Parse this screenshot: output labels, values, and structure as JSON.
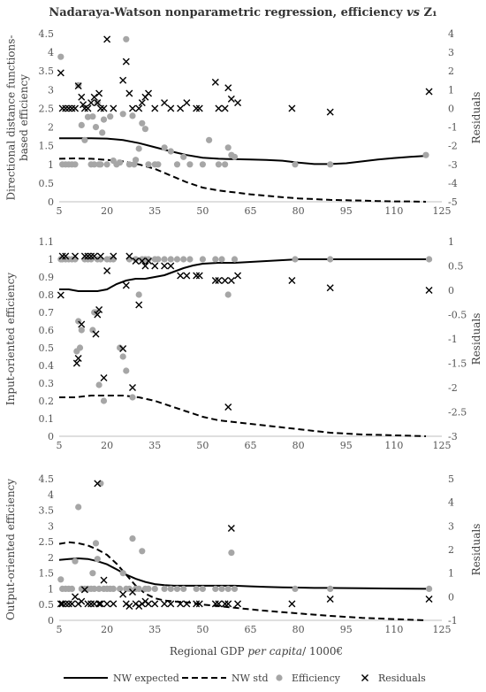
{
  "figure": {
    "title": "Nadaraya-Watson nonparametric regression, efficiency vs Z₁",
    "xlabel": "Regional GDP per capita/ 1000€",
    "legend": [
      "NW expected",
      "NW std",
      "Efficiency",
      "Residuals"
    ]
  },
  "chart_data": [
    {
      "type": "scatter",
      "title": "",
      "ylabel": "Directional distance functions-based efficiency",
      "y2label": "Residuals",
      "xlim": [
        5,
        125
      ],
      "xticks": [
        5,
        20,
        35,
        50,
        65,
        80,
        95,
        110,
        125
      ],
      "ylim": [
        0,
        4.5
      ],
      "yticks": [
        0,
        0.5,
        1,
        1.5,
        2,
        2.5,
        3,
        3.5,
        4,
        4.5
      ],
      "y2lim": [
        -5,
        4
      ],
      "y2ticks": [
        -5,
        -4,
        -3,
        -2,
        -1,
        0,
        1,
        2,
        3,
        4
      ],
      "grid": false,
      "legend_position": "bottom",
      "series": [
        {
          "name": "NW expected",
          "type": "line",
          "axis": "left",
          "x": [
            5,
            10,
            15,
            20,
            25,
            30,
            35,
            40,
            45,
            50,
            55,
            60,
            65,
            70,
            75,
            80,
            85,
            90,
            95,
            100,
            105,
            110,
            115,
            120
          ],
          "y": [
            1.7,
            1.7,
            1.7,
            1.69,
            1.65,
            1.57,
            1.46,
            1.35,
            1.25,
            1.18,
            1.15,
            1.14,
            1.13,
            1.12,
            1.1,
            1.05,
            1.01,
            1.01,
            1.03,
            1.08,
            1.13,
            1.17,
            1.2,
            1.23
          ]
        },
        {
          "name": "NW std",
          "type": "line",
          "axis": "left",
          "x": [
            5,
            10,
            15,
            20,
            25,
            30,
            35,
            40,
            45,
            50,
            55,
            60,
            65,
            70,
            75,
            80,
            85,
            90,
            95,
            100,
            105,
            110,
            115,
            120
          ],
          "y": [
            1.15,
            1.16,
            1.15,
            1.12,
            1.08,
            1.0,
            0.88,
            0.7,
            0.52,
            0.38,
            0.3,
            0.25,
            0.2,
            0.16,
            0.12,
            0.09,
            0.07,
            0.05,
            0.04,
            0.03,
            0.02,
            0.01,
            0.01,
            0.0
          ]
        },
        {
          "name": "Efficiency",
          "type": "scatter",
          "axis": "left",
          "x": [
            5.5,
            6,
            7,
            8,
            9,
            10,
            11,
            12,
            13,
            14,
            15,
            15.5,
            16,
            16.5,
            17,
            17.5,
            18,
            18.5,
            19,
            20,
            21,
            22,
            23,
            24,
            25,
            26,
            27,
            28,
            28.5,
            29,
            30,
            31,
            32,
            33,
            35,
            36,
            38,
            40,
            42,
            44,
            46,
            50,
            52,
            55,
            57,
            58,
            59,
            60,
            79,
            90,
            120
          ],
          "y": [
            3.88,
            1.0,
            1.0,
            1.0,
            1.0,
            1.0,
            3.12,
            2.05,
            1.65,
            2.27,
            1.0,
            2.28,
            1.0,
            2.0,
            2.65,
            1.0,
            1.0,
            1.85,
            2.2,
            1.0,
            2.28,
            1.1,
            1.0,
            1.05,
            2.35,
            4.35,
            1.0,
            2.3,
            1.0,
            1.12,
            1.42,
            2.1,
            1.95,
            1.0,
            1.0,
            1.0,
            1.45,
            1.35,
            1.0,
            1.2,
            1.0,
            1.0,
            1.65,
            1.0,
            1.0,
            1.45,
            1.25,
            1.2,
            1.0,
            1.0,
            1.25
          ]
        },
        {
          "name": "Residuals",
          "type": "scatter",
          "axis": "right",
          "x": [
            5.5,
            6,
            7,
            8,
            9,
            10,
            11,
            12,
            12.5,
            13,
            14,
            15,
            16,
            17,
            17.5,
            18,
            19,
            20,
            22,
            25,
            26,
            27,
            28,
            30,
            31,
            32,
            33,
            35,
            38,
            40,
            43,
            45,
            48,
            49,
            54,
            55,
            57,
            58,
            59,
            61,
            78,
            90,
            121
          ],
          "y": [
            1.9,
            0.0,
            0.0,
            0.0,
            0.0,
            0.0,
            1.2,
            0.6,
            0.2,
            0.0,
            0.0,
            0.3,
            0.6,
            0.3,
            0.8,
            0.0,
            0.0,
            3.7,
            0.0,
            1.5,
            2.5,
            0.8,
            0.0,
            0.0,
            0.3,
            0.6,
            0.8,
            0.0,
            0.3,
            0.0,
            0.0,
            0.3,
            0.0,
            0.0,
            1.4,
            0.0,
            0.0,
            1.1,
            0.5,
            0.3,
            0.0,
            -0.2,
            0.9
          ]
        }
      ]
    },
    {
      "type": "scatter",
      "title": "",
      "ylabel": "Input-oriented efficiency",
      "y2label": "Residuals",
      "xlim": [
        5,
        125
      ],
      "xticks": [
        5,
        20,
        35,
        50,
        65,
        80,
        95,
        110,
        125
      ],
      "ylim": [
        0,
        1.1
      ],
      "yticks": [
        0,
        0.1,
        0.2,
        0.3,
        0.4,
        0.5,
        0.6,
        0.7,
        0.8,
        0.9,
        1,
        1.1
      ],
      "y2lim": [
        -3,
        1
      ],
      "y2ticks": [
        -3,
        -2.5,
        -2,
        -1.5,
        -1,
        -0.5,
        0,
        0.5,
        1
      ],
      "grid": false,
      "legend_position": "bottom",
      "series": [
        {
          "name": "NW expected",
          "type": "line",
          "axis": "left",
          "x": [
            5,
            8,
            11,
            14,
            17,
            20,
            23,
            26,
            29,
            32,
            35,
            38,
            41,
            44,
            47,
            50,
            55,
            60,
            65,
            70,
            75,
            80,
            85,
            90,
            100,
            110,
            120
          ],
          "y": [
            0.83,
            0.83,
            0.82,
            0.82,
            0.82,
            0.83,
            0.86,
            0.88,
            0.89,
            0.89,
            0.9,
            0.91,
            0.93,
            0.95,
            0.965,
            0.975,
            0.98,
            0.98,
            0.985,
            0.99,
            0.995,
            1.0,
            1.0,
            1.0,
            1.0,
            1.0,
            1.0
          ]
        },
        {
          "name": "NW std",
          "type": "line",
          "axis": "left",
          "x": [
            5,
            10,
            15,
            20,
            25,
            30,
            35,
            40,
            45,
            50,
            55,
            60,
            65,
            70,
            75,
            80,
            85,
            90,
            95,
            100,
            105,
            110,
            115,
            120
          ],
          "y": [
            0.22,
            0.22,
            0.23,
            0.23,
            0.23,
            0.22,
            0.2,
            0.17,
            0.14,
            0.11,
            0.09,
            0.08,
            0.07,
            0.06,
            0.05,
            0.04,
            0.03,
            0.02,
            0.015,
            0.01,
            0.008,
            0.005,
            0.003,
            0.0
          ]
        },
        {
          "name": "Efficiency",
          "type": "scatter",
          "axis": "left",
          "x": [
            5.5,
            6,
            7,
            8,
            9,
            10,
            10.5,
            11,
            11.5,
            12,
            13,
            14,
            15,
            15.5,
            16,
            16.5,
            17,
            17.5,
            18,
            19,
            20,
            21,
            22,
            24,
            25,
            26,
            27,
            28,
            29,
            30,
            31,
            32,
            33,
            35,
            36,
            38,
            40,
            42,
            44,
            46,
            50,
            54,
            56,
            58,
            60,
            79,
            90,
            121
          ],
          "y": [
            1.0,
            1.0,
            1.0,
            1.0,
            1.0,
            1.0,
            0.48,
            0.65,
            0.5,
            0.6,
            1.0,
            1.0,
            1.0,
            0.6,
            0.7,
            0.7,
            1.0,
            0.29,
            1.0,
            0.2,
            1.0,
            1.0,
            1.0,
            0.5,
            0.45,
            0.37,
            1.0,
            0.22,
            1.0,
            0.8,
            1.0,
            1.0,
            1.0,
            1.0,
            1.0,
            1.0,
            1.0,
            1.0,
            1.0,
            1.0,
            1.0,
            1.0,
            1.0,
            0.8,
            1.0,
            1.0,
            1.0,
            1.0
          ]
        },
        {
          "name": "Residuals",
          "type": "scatter",
          "axis": "right",
          "x": [
            5.5,
            6,
            7,
            10,
            10.5,
            11,
            12,
            13,
            14,
            15,
            16,
            16.5,
            17,
            17.5,
            18,
            19,
            20,
            22,
            25,
            26,
            27,
            28,
            29,
            30,
            31,
            32,
            33,
            35,
            38,
            40,
            43,
            45,
            48,
            49,
            54,
            55,
            57,
            58,
            59,
            61,
            78,
            90,
            121
          ],
          "y": [
            -0.1,
            0.7,
            0.7,
            0.7,
            -1.5,
            -1.4,
            -0.7,
            0.7,
            0.7,
            0.7,
            0.7,
            -0.9,
            -0.5,
            -0.4,
            0.7,
            -1.8,
            0.4,
            0.7,
            -1.2,
            0.1,
            0.7,
            -2.0,
            0.6,
            -0.3,
            0.6,
            0.5,
            0.6,
            0.5,
            0.5,
            0.5,
            0.3,
            0.3,
            0.3,
            0.3,
            0.2,
            0.2,
            0.2,
            -2.4,
            0.2,
            0.3,
            0.2,
            0.05,
            0.0
          ]
        }
      ]
    },
    {
      "type": "scatter",
      "title": "",
      "ylabel": "Output-oriented efficiency",
      "y2label": "Residuals",
      "xlim": [
        5,
        125
      ],
      "xticks": [
        5,
        20,
        35,
        50,
        65,
        80,
        95,
        110,
        125
      ],
      "ylim": [
        0,
        4.5
      ],
      "yticks": [
        0,
        0.5,
        1,
        1.5,
        2,
        2.5,
        3,
        3.5,
        4,
        4.5
      ],
      "y2lim": [
        -1,
        5
      ],
      "y2ticks": [
        -1,
        0,
        1,
        2,
        3,
        4,
        5
      ],
      "grid": false,
      "legend_position": "bottom",
      "series": [
        {
          "name": "NW expected",
          "type": "line",
          "axis": "left",
          "x": [
            5,
            8,
            11,
            14,
            17,
            20,
            23,
            26,
            29,
            32,
            35,
            38,
            41,
            44,
            47,
            50,
            55,
            60,
            65,
            70,
            75,
            80,
            85,
            90,
            100,
            110,
            120
          ],
          "y": [
            1.92,
            1.95,
            1.97,
            1.95,
            1.88,
            1.78,
            1.62,
            1.45,
            1.32,
            1.22,
            1.15,
            1.12,
            1.1,
            1.1,
            1.1,
            1.1,
            1.1,
            1.1,
            1.08,
            1.06,
            1.05,
            1.04,
            1.03,
            1.03,
            1.02,
            1.01,
            1.0
          ]
        },
        {
          "name": "NW std",
          "type": "line",
          "axis": "left",
          "x": [
            5,
            8,
            11,
            14,
            17,
            20,
            23,
            26,
            29,
            32,
            35,
            38,
            41,
            44,
            47,
            50,
            55,
            60,
            65,
            70,
            75,
            80,
            85,
            90,
            100,
            110,
            120
          ],
          "y": [
            2.43,
            2.48,
            2.45,
            2.38,
            2.25,
            2.08,
            1.8,
            1.45,
            1.1,
            0.85,
            0.7,
            0.63,
            0.6,
            0.58,
            0.55,
            0.5,
            0.45,
            0.4,
            0.35,
            0.3,
            0.26,
            0.22,
            0.18,
            0.14,
            0.08,
            0.04,
            0.0
          ]
        },
        {
          "name": "Efficiency",
          "type": "scatter",
          "axis": "left",
          "x": [
            5.5,
            6,
            7,
            8,
            9,
            10,
            11,
            12,
            13,
            14,
            15,
            15.5,
            16,
            16.5,
            17,
            17.5,
            18,
            19,
            20,
            21,
            22,
            24,
            25,
            26,
            27,
            28,
            29,
            30,
            31,
            32,
            33,
            35,
            38,
            40,
            42,
            44,
            48,
            50,
            54,
            56,
            58,
            59,
            60,
            79,
            90,
            121
          ],
          "y": [
            1.3,
            1.0,
            1.0,
            1.0,
            1.0,
            1.88,
            3.6,
            1.0,
            1.0,
            1.0,
            1.0,
            1.5,
            1.0,
            2.45,
            1.95,
            1.0,
            4.35,
            1.0,
            1.0,
            1.0,
            1.0,
            1.0,
            1.5,
            1.0,
            1.0,
            2.6,
            1.0,
            1.0,
            2.2,
            1.0,
            1.0,
            1.0,
            1.0,
            1.0,
            1.0,
            1.0,
            1.0,
            1.0,
            1.0,
            1.0,
            1.0,
            2.15,
            1.0,
            1.0,
            1.0,
            1.0
          ]
        },
        {
          "name": "Residuals",
          "type": "scatter",
          "axis": "right",
          "x": [
            5.5,
            6,
            7,
            8,
            9,
            10,
            11,
            12,
            13,
            14,
            15,
            16,
            17,
            17.5,
            18,
            19,
            20,
            22,
            25,
            26,
            27,
            28,
            29,
            30,
            31,
            32,
            33,
            35,
            38,
            40,
            43,
            45,
            48,
            49,
            54,
            55,
            57,
            58,
            59,
            61,
            78,
            90,
            121
          ],
          "y": [
            -0.3,
            -0.3,
            -0.3,
            -0.3,
            -0.3,
            0.0,
            -0.3,
            -0.2,
            0.3,
            -0.3,
            -0.3,
            -0.3,
            4.8,
            -0.3,
            -0.3,
            0.7,
            -0.3,
            -0.3,
            0.1,
            -0.3,
            -0.4,
            0.2,
            -0.3,
            -0.4,
            -0.3,
            -0.2,
            -0.3,
            -0.3,
            -0.3,
            -0.3,
            -0.3,
            -0.3,
            -0.3,
            -0.3,
            -0.3,
            -0.3,
            -0.3,
            -0.3,
            2.9,
            -0.3,
            -0.3,
            -0.1,
            -0.1
          ]
        }
      ]
    }
  ]
}
